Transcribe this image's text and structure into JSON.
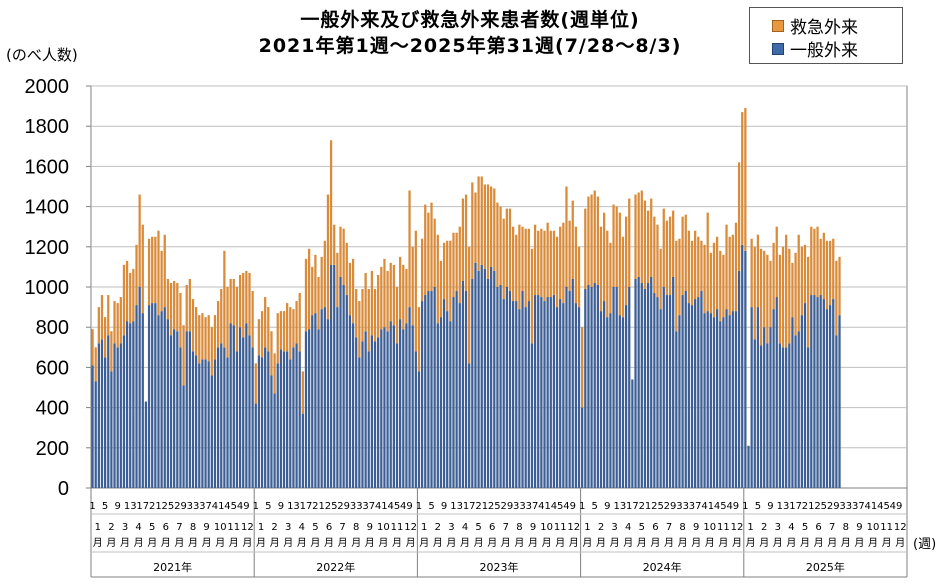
{
  "title_line1": "一般外来及び救急外来患者数(週単位)",
  "title_line2": "2021年第1週〜2025年第31週(7/28〜8/3)",
  "y_unit": "(のべ人数)",
  "x_unit": "(週)",
  "legend": [
    "救急外来",
    "一般外来"
  ],
  "colors": {
    "emergency": "#d98b3a",
    "general": "#3d5f95",
    "grid": "#bfbfbf"
  },
  "chart_data": {
    "type": "bar",
    "stacked": true,
    "ylim": [
      0,
      2000
    ],
    "y_ticks": [
      0,
      200,
      400,
      600,
      800,
      1000,
      1200,
      1400,
      1600,
      1800,
      2000
    ],
    "grid": true,
    "legend_position": "top-right",
    "years": [
      {
        "label": "2021年",
        "total_weeks": 52,
        "data_weeks": 52,
        "week_ticks": [
          "1",
          "5",
          "9",
          "13",
          "17",
          "21",
          "25",
          "29",
          "33",
          "37",
          "41",
          "45",
          "49"
        ],
        "months": [
          "1\n月",
          "2\n月",
          "3\n月",
          "4\n月",
          "5\n月",
          "6\n月",
          "7\n月",
          "8\n月",
          "9\n月",
          "10\n月",
          "11\n月",
          "12\n月"
        ],
        "general": [
          610,
          530,
          720,
          740,
          650,
          760,
          580,
          720,
          700,
          720,
          760,
          830,
          820,
          830,
          910,
          1000,
          870,
          430,
          910,
          920,
          920,
          860,
          880,
          900,
          840,
          760,
          790,
          780,
          700,
          510,
          780,
          780,
          680,
          660,
          620,
          640,
          640,
          630,
          560,
          640,
          700,
          720,
          700,
          650,
          820,
          810,
          680,
          800,
          750,
          820,
          760,
          700
        ],
        "emergency": [
          180,
          170,
          180,
          220,
          200,
          200,
          200,
          210,
          220,
          230,
          350,
          300,
          250,
          260,
          300,
          460,
          440,
          0,
          330,
          330,
          330,
          420,
          300,
          360,
          200,
          260,
          240,
          240,
          270,
          300,
          230,
          260,
          260,
          240,
          240,
          230,
          210,
          230,
          240,
          220,
          230,
          270,
          480,
          350,
          220,
          230,
          320,
          260,
          320,
          260,
          310,
          280
        ]
      },
      {
        "label": "2022年",
        "total_weeks": 52,
        "data_weeks": 52,
        "week_ticks": [
          "1",
          "5",
          "9",
          "13",
          "17",
          "21",
          "25",
          "29",
          "33",
          "37",
          "41",
          "45",
          "49"
        ],
        "months": [
          "1\n月",
          "2\n月",
          "3\n月",
          "4\n月",
          "5\n月",
          "6\n月",
          "7\n月",
          "8\n月",
          "9\n月",
          "10\n月",
          "11\n月",
          "12\n月"
        ],
        "general": [
          420,
          660,
          650,
          700,
          680,
          560,
          470,
          620,
          690,
          680,
          680,
          640,
          700,
          720,
          680,
          370,
          780,
          790,
          860,
          870,
          790,
          890,
          900,
          840,
          1110,
          1110,
          900,
          1050,
          1010,
          960,
          860,
          820,
          750,
          650,
          730,
          780,
          680,
          760,
          730,
          750,
          790,
          800,
          780,
          830,
          810,
          720,
          840,
          790,
          820,
          900,
          810,
          680
        ],
        "emergency": [
          200,
          180,
          230,
          250,
          220,
          220,
          200,
          250,
          190,
          200,
          240,
          260,
          190,
          210,
          290,
          210,
          360,
          400,
          240,
          290,
          260,
          260,
          330,
          620,
          620,
          200,
          270,
          250,
          280,
          260,
          260,
          320,
          240,
          280,
          260,
          290,
          310,
          320,
          260,
          310,
          310,
          340,
          300,
          290,
          300,
          280,
          310,
          320,
          270,
          580,
          390,
          600
        ]
      },
      {
        "label": "2023年",
        "total_weeks": 52,
        "data_weeks": 52,
        "week_ticks": [
          "1",
          "5",
          "9",
          "13",
          "17",
          "21",
          "25",
          "29",
          "33",
          "37",
          "41",
          "45",
          "49"
        ],
        "months": [
          "1\n月",
          "2\n月",
          "3\n月",
          "4\n月",
          "5\n月",
          "6\n月",
          "7\n月",
          "8\n月",
          "9\n月",
          "10\n月",
          "11\n月",
          "12\n月"
        ],
        "general": [
          580,
          930,
          960,
          980,
          980,
          1000,
          820,
          850,
          940,
          880,
          830,
          950,
          980,
          920,
          1030,
          980,
          620,
          1040,
          1120,
          1080,
          1110,
          1090,
          1040,
          1100,
          1080,
          1000,
          1010,
          940,
          1000,
          980,
          930,
          930,
          890,
          980,
          900,
          930,
          720,
          960,
          960,
          950,
          930,
          950,
          950,
          960,
          900,
          940,
          920,
          1000,
          980,
          1040,
          920,
          900
        ],
        "emergency": [
          320,
          310,
          450,
          390,
          440,
          340,
          440,
          280,
          280,
          350,
          400,
          320,
          290,
          380,
          410,
          480,
          580,
          480,
          350,
          470,
          440,
          420,
          470,
          400,
          410,
          420,
          390,
          400,
          390,
          410,
          370,
          330,
          420,
          320,
          390,
          360,
          470,
          350,
          320,
          340,
          350,
          370,
          330,
          320,
          350,
          360,
          400,
          500,
          350,
          390,
          380,
          300
        ]
      },
      {
        "label": "2024年",
        "total_weeks": 52,
        "data_weeks": 52,
        "week_ticks": [
          "1",
          "5",
          "9",
          "13",
          "17",
          "21",
          "25",
          "29",
          "33",
          "37",
          "41",
          "45",
          "49"
        ],
        "months": [
          "1\n月",
          "2\n月",
          "3\n月",
          "4\n月",
          "5\n月",
          "6\n月",
          "7\n月",
          "8\n月",
          "9\n月",
          "10\n月",
          "11\n月",
          "12\n月"
        ],
        "general": [
          400,
          990,
          1010,
          1000,
          1020,
          1010,
          880,
          930,
          850,
          870,
          1000,
          1000,
          860,
          850,
          910,
          1000,
          540,
          1040,
          1050,
          1020,
          990,
          1020,
          1050,
          970,
          950,
          890,
          1000,
          960,
          960,
          1050,
          780,
          860,
          960,
          980,
          920,
          910,
          940,
          950,
          980,
          870,
          880,
          870,
          850,
          890,
          830,
          850,
          890,
          860,
          880,
          880,
          1080,
          1210
        ],
        "emergency": [
          400,
          400,
          440,
          460,
          460,
          440,
          420,
          440,
          430,
          350,
          410,
          400,
          510,
          400,
          440,
          440,
          0,
          420,
          420,
          460,
          440,
          360,
          390,
          380,
          360,
          300,
          390,
          370,
          390,
          330,
          450,
          380,
          390,
          380,
          360,
          320,
          340,
          300,
          250,
          340,
          490,
          300,
          370,
          360,
          350,
          310,
          420,
          390,
          380,
          440,
          540,
          660
        ]
      },
      {
        "label": "2025年",
        "total_weeks": 52,
        "data_weeks": 31,
        "week_ticks": [
          "1",
          "5",
          "9",
          "13",
          "17",
          "21",
          "25",
          "29",
          "33",
          "37",
          "41",
          "45",
          "49"
        ],
        "months": [
          "1\n月",
          "2\n月",
          "3\n月",
          "4\n月",
          "5\n月",
          "6\n月",
          "7\n月",
          "8\n月",
          "9\n月",
          "10\n月",
          "11\n月",
          "12\n月"
        ],
        "general": [
          1180,
          210,
          900,
          740,
          900,
          710,
          800,
          720,
          800,
          890,
          950,
          720,
          700,
          700,
          720,
          850,
          760,
          780,
          860,
          920,
          700,
          960,
          960,
          950,
          960,
          940,
          890,
          910,
          940,
          760,
          860
        ],
        "emergency": [
          710,
          0,
          340,
          460,
          360,
          480,
          380,
          440,
          330,
          330,
          350,
          440,
          500,
          560,
          470,
          270,
          410,
          480,
          340,
          290,
          450,
          340,
          330,
          350,
          280,
          330,
          340,
          320,
          300,
          370,
          290
        ]
      }
    ]
  }
}
